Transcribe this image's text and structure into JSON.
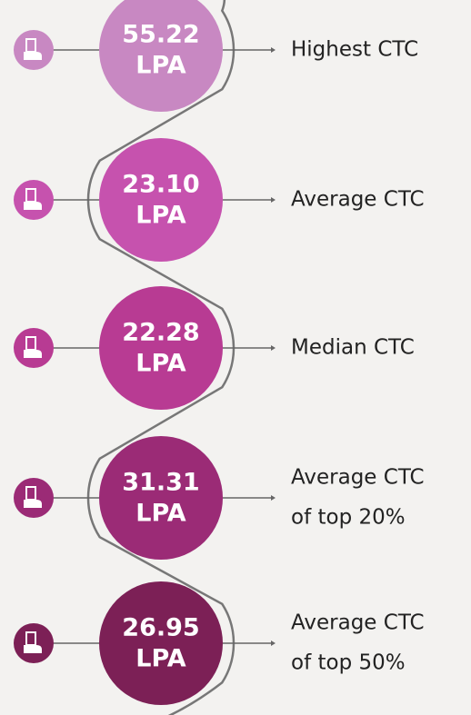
{
  "items": [
    {
      "value": "55.22",
      "unit": "LPA",
      "label": [
        "Highest CTC"
      ]
    },
    {
      "value": "23.10",
      "unit": "LPA",
      "label": [
        "Average CTC"
      ]
    },
    {
      "value": "22.28",
      "unit": "LPA",
      "label": [
        "Median CTC"
      ]
    },
    {
      "value": "31.31",
      "unit": "LPA",
      "label": [
        "Average CTC",
        "of top 20%"
      ]
    },
    {
      "value": "26.95",
      "unit": "LPA",
      "label": [
        "Average CTC",
        "of top 50%"
      ]
    }
  ]
}
